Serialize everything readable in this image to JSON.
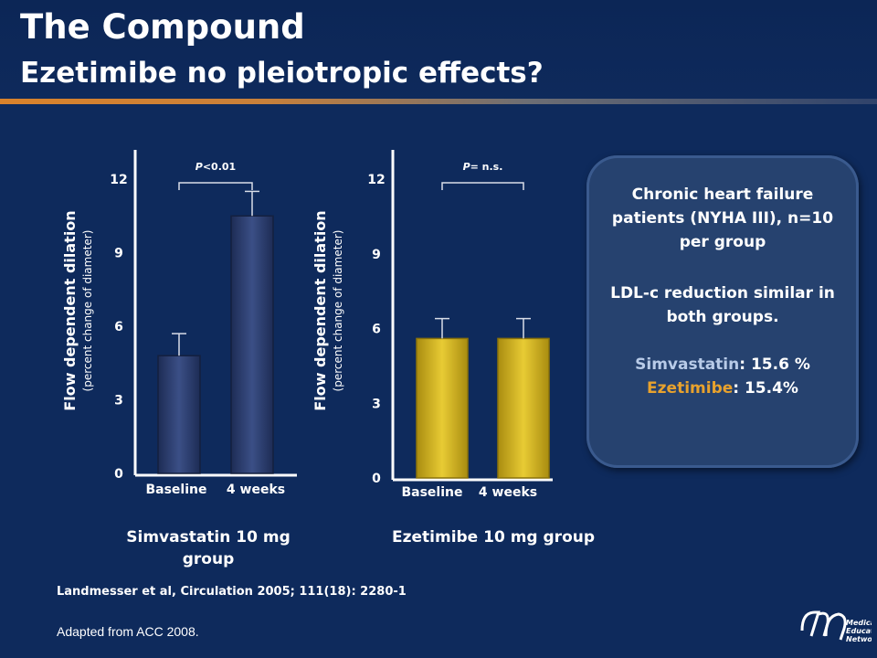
{
  "slide": {
    "title": "The Compound",
    "subtitle": "Ezetimibe no pleiotropic effects?"
  },
  "colors": {
    "background": "#0e2a5c",
    "simvastatin_bar": "#2d3f6e",
    "ezetimibe_bar": "#d4b21e",
    "accent_orange": "#e8a22d",
    "panel": "#26426f"
  },
  "chart_data": [
    {
      "type": "bar",
      "categories": [
        "Baseline",
        "4 weeks"
      ],
      "values": [
        4.8,
        10.5
      ],
      "error": [
        0.9,
        1.0
      ],
      "ylim": [
        0,
        12
      ],
      "yticks": [
        0,
        3,
        6,
        9,
        12
      ],
      "ylabel": "Flow dependent dilation",
      "ylabel_sub": "(percent change of diameter)",
      "significance": {
        "prefix": "P",
        "label": "<0.01"
      },
      "group_label": "Simvastatin 10 mg group"
    },
    {
      "type": "bar",
      "categories": [
        "Baseline",
        "4 weeks"
      ],
      "values": [
        5.6,
        5.6
      ],
      "error": [
        0.8,
        0.8
      ],
      "ylim": [
        0,
        12
      ],
      "yticks": [
        0,
        3,
        6,
        9,
        12
      ],
      "ylabel": "Flow dependent dilation",
      "ylabel_sub": "(percent change of diameter)",
      "significance": {
        "prefix": "P",
        "label": "= n.s."
      },
      "group_label": "Ezetimibe 10 mg group"
    }
  ],
  "info_panel": {
    "line1": "Chronic heart failure patients (NYHA III), n=10 per group",
    "line2": "LDL-c reduction similar in both groups.",
    "simv_name": "Simvastatin",
    "simv_value": ": 15.6 %",
    "ezet_name": "Ezetimibe",
    "ezet_value": ": 15.4%"
  },
  "footer": {
    "citation": "Landmesser et al, Circulation 2005; 111(18): 2280-1",
    "adapted": "Adapted from ACC 2008.",
    "logo_text_1": "Medical",
    "logo_text_2": "Education",
    "logo_text_3": "Network"
  }
}
